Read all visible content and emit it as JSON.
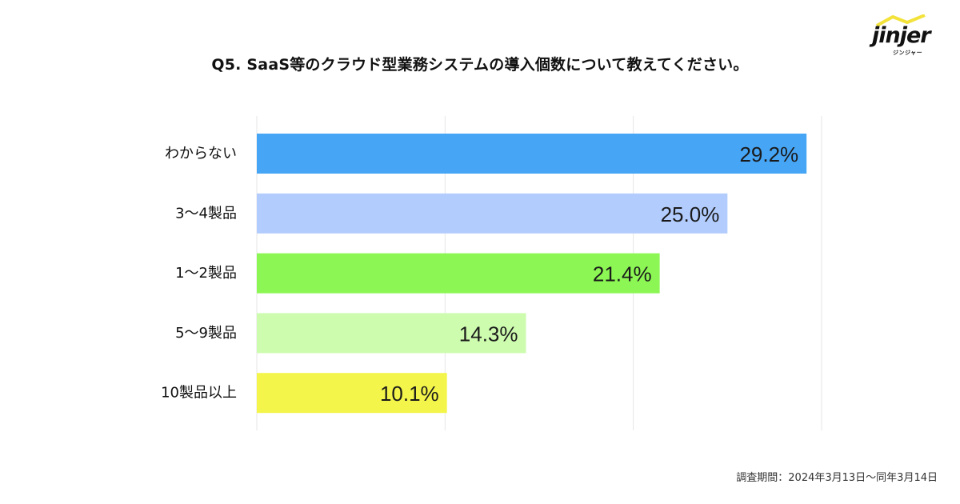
{
  "title": "Q5. SaaS等のクラウド型業務システムの導入個数について教えてください。",
  "logo": {
    "text": "jinjer",
    "subtext": "ジンジャー"
  },
  "footnote": "調査期間：2024年3月13日〜同年3月14日",
  "chart_data": {
    "type": "bar",
    "orientation": "horizontal",
    "categories": [
      "わからない",
      "3〜4製品",
      "1〜2製品",
      "5〜9製品",
      "10製品以上"
    ],
    "values": [
      29.2,
      25.0,
      21.4,
      14.3,
      10.1
    ],
    "value_labels": [
      "29.2%",
      "25.0%",
      "21.4%",
      "14.3%",
      "10.1%"
    ],
    "colors": [
      "#46a5f5",
      "#b2ccfd",
      "#8cf754",
      "#cdfcaf",
      "#f3f54a"
    ],
    "xlim": [
      0,
      30
    ],
    "grid": true
  }
}
